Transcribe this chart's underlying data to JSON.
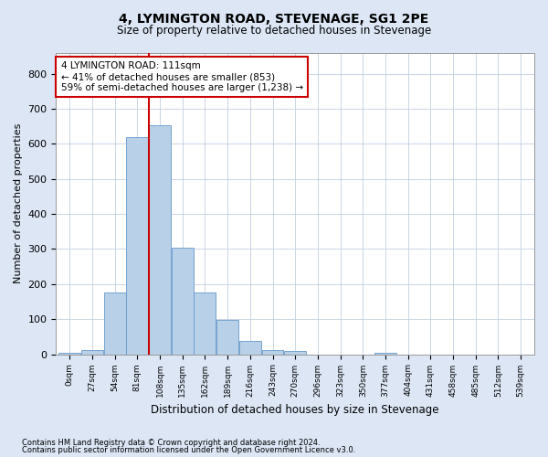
{
  "title": "4, LYMINGTON ROAD, STEVENAGE, SG1 2PE",
  "subtitle": "Size of property relative to detached houses in Stevenage",
  "xlabel": "Distribution of detached houses by size in Stevenage",
  "ylabel": "Number of detached properties",
  "bar_labels": [
    "0sqm",
    "27sqm",
    "54sqm",
    "81sqm",
    "108sqm",
    "135sqm",
    "162sqm",
    "189sqm",
    "216sqm",
    "243sqm",
    "270sqm",
    "296sqm",
    "323sqm",
    "350sqm",
    "377sqm",
    "404sqm",
    "431sqm",
    "458sqm",
    "485sqm",
    "512sqm",
    "539sqm"
  ],
  "bar_values": [
    5,
    13,
    175,
    620,
    653,
    305,
    175,
    97,
    38,
    13,
    10,
    0,
    0,
    0,
    5,
    0,
    0,
    0,
    0,
    0,
    0
  ],
  "bar_color": "#b8d0e8",
  "bar_edge_color": "#6699cc",
  "ylim": [
    0,
    860
  ],
  "yticks": [
    0,
    100,
    200,
    300,
    400,
    500,
    600,
    700,
    800
  ],
  "vline_x_bar_index": 4,
  "vline_color": "#cc0000",
  "annotation_text": "4 LYMINGTON ROAD: 111sqm\n← 41% of detached houses are smaller (853)\n59% of semi-detached houses are larger (1,238) →",
  "annotation_box_color": "#ffffff",
  "annotation_box_edge_color": "#cc0000",
  "footer_line1": "Contains HM Land Registry data © Crown copyright and database right 2024.",
  "footer_line2": "Contains public sector information licensed under the Open Government Licence v3.0.",
  "background_color": "#dce6f5",
  "plot_bg_color": "#ffffff",
  "grid_color": "#c0cfe0"
}
